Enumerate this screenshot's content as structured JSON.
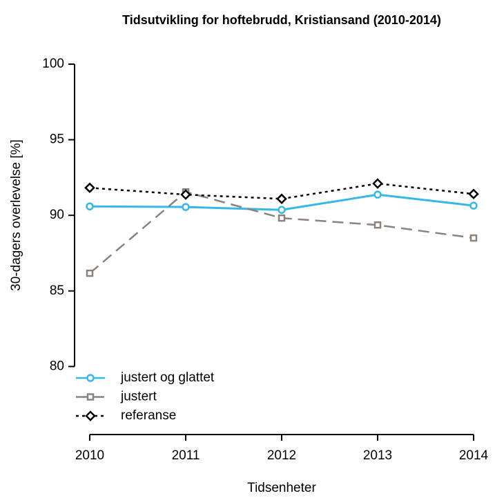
{
  "chart_data": {
    "type": "line",
    "title": "Tidsutvikling for hoftebrudd, Kristiansand (2010-2014)",
    "x_label": "Tidsenheter",
    "y_label": "30-dagers overlevelse [%]",
    "x": [
      2010,
      2011,
      2012,
      2013,
      2014
    ],
    "xlim": [
      2010,
      2014
    ],
    "xticks": [
      2010,
      2011,
      2012,
      2013,
      2014
    ],
    "ylim": [
      75.5,
      100
    ],
    "yticks": [
      80,
      85,
      90,
      95,
      100
    ],
    "legend": "bottomleft",
    "series": [
      {
        "name": "justert og glattet",
        "color": "#35b8e8",
        "linestyle": "solid",
        "marker": "circle",
        "values": [
          90.59,
          90.55,
          90.36,
          91.37,
          90.64
        ]
      },
      {
        "name": "justert",
        "color": "#8c817b",
        "linestyle": "dashed",
        "marker": "square",
        "values": [
          86.17,
          91.55,
          89.82,
          89.36,
          88.5
        ]
      },
      {
        "name": "referanse",
        "color": "#000000",
        "linestyle": "dotted",
        "marker": "diamond",
        "values": [
          91.82,
          91.37,
          91.09,
          92.1,
          91.41
        ]
      }
    ]
  }
}
